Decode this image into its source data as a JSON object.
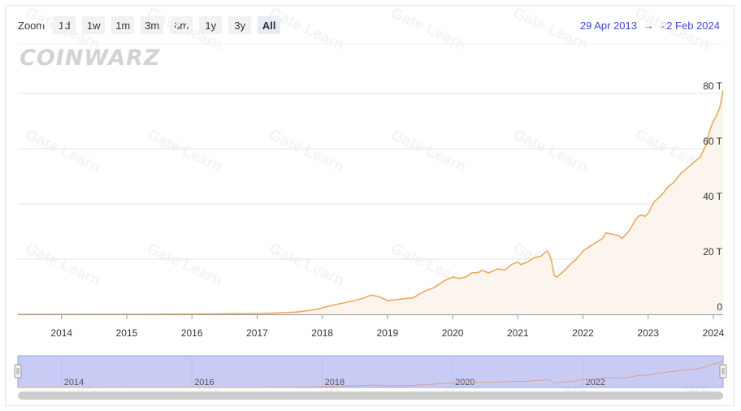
{
  "zoom": {
    "label": "Zoom",
    "buttons": [
      "1d",
      "1w",
      "1m",
      "3m",
      "6m",
      "1y",
      "3y",
      "All"
    ],
    "active": "All"
  },
  "range": {
    "from": "29 Apr 2013",
    "arrow": "→",
    "to": "22 Feb 2024"
  },
  "logo": "COINWARZ",
  "watermark": "Gate Learn",
  "colors": {
    "line": "#eba95c",
    "area": "#fbf5ee",
    "navigator_mask": "#c8ccf5",
    "navigator_line": "#d9a090",
    "grid": "#e6e6e6",
    "scrollbar": "#cccccc"
  },
  "chart_data": {
    "type": "area",
    "xlim": [
      2013.33,
      2024.15
    ],
    "ylim": [
      0,
      80
    ],
    "y_unit": "T",
    "y_ticks": [
      "0",
      "20 T",
      "40 T",
      "60 T",
      "80 T"
    ],
    "y_tick_values": [
      0,
      20,
      40,
      60,
      80
    ],
    "x_ticks": [
      "2014",
      "2015",
      "2016",
      "2017",
      "2018",
      "2019",
      "2020",
      "2021",
      "2022",
      "2023",
      "2024"
    ],
    "x_tick_values": [
      2014,
      2015,
      2016,
      2017,
      2018,
      2019,
      2020,
      2021,
      2022,
      2023,
      2024
    ],
    "navigator_ticks": [
      "2014",
      "2016",
      "2018",
      "2020",
      "2022"
    ],
    "navigator_tick_values": [
      2014,
      2016,
      2018,
      2020,
      2022
    ],
    "points": [
      [
        2013.33,
        0.0
      ],
      [
        2014.0,
        0.002
      ],
      [
        2014.5,
        0.02
      ],
      [
        2015.0,
        0.04
      ],
      [
        2015.5,
        0.05
      ],
      [
        2016.0,
        0.1
      ],
      [
        2016.5,
        0.2
      ],
      [
        2017.0,
        0.3
      ],
      [
        2017.3,
        0.5
      ],
      [
        2017.6,
        0.8
      ],
      [
        2017.8,
        1.4
      ],
      [
        2017.95,
        2.0
      ],
      [
        2018.1,
        3.0
      ],
      [
        2018.3,
        4.0
      ],
      [
        2018.5,
        5.0
      ],
      [
        2018.65,
        6.0
      ],
      [
        2018.75,
        7.0
      ],
      [
        2018.85,
        6.5
      ],
      [
        2018.95,
        5.6
      ],
      [
        2019.0,
        5.0
      ],
      [
        2019.2,
        5.5
      ],
      [
        2019.4,
        6.0
      ],
      [
        2019.5,
        7.5
      ],
      [
        2019.6,
        8.7
      ],
      [
        2019.7,
        9.5
      ],
      [
        2019.8,
        11.0
      ],
      [
        2019.9,
        12.5
      ],
      [
        2020.0,
        13.5
      ],
      [
        2020.1,
        13.0
      ],
      [
        2020.2,
        13.5
      ],
      [
        2020.3,
        15.0
      ],
      [
        2020.4,
        15.2
      ],
      [
        2020.45,
        16.0
      ],
      [
        2020.55,
        15.0
      ],
      [
        2020.7,
        16.5
      ],
      [
        2020.8,
        16.0
      ],
      [
        2020.9,
        18.0
      ],
      [
        2021.0,
        19.0
      ],
      [
        2021.05,
        18.0
      ],
      [
        2021.15,
        19.0
      ],
      [
        2021.25,
        20.5
      ],
      [
        2021.35,
        21.0
      ],
      [
        2021.45,
        23.0
      ],
      [
        2021.48,
        22.0
      ],
      [
        2021.52,
        19.0
      ],
      [
        2021.56,
        14.0
      ],
      [
        2021.6,
        13.5
      ],
      [
        2021.7,
        15.5
      ],
      [
        2021.8,
        18.0
      ],
      [
        2021.9,
        20.0
      ],
      [
        2022.0,
        23.0
      ],
      [
        2022.1,
        24.5
      ],
      [
        2022.2,
        26.0
      ],
      [
        2022.3,
        27.5
      ],
      [
        2022.35,
        29.5
      ],
      [
        2022.45,
        29.0
      ],
      [
        2022.55,
        28.5
      ],
      [
        2022.6,
        27.5
      ],
      [
        2022.7,
        30.0
      ],
      [
        2022.8,
        34.0
      ],
      [
        2022.85,
        35.5
      ],
      [
        2022.9,
        36.0
      ],
      [
        2022.95,
        35.5
      ],
      [
        2023.0,
        36.5
      ],
      [
        2023.05,
        39.0
      ],
      [
        2023.1,
        41.0
      ],
      [
        2023.2,
        43.0
      ],
      [
        2023.3,
        46.0
      ],
      [
        2023.4,
        48.0
      ],
      [
        2023.5,
        51.0
      ],
      [
        2023.6,
        53.0
      ],
      [
        2023.7,
        55.0
      ],
      [
        2023.8,
        57.0
      ],
      [
        2023.9,
        62.0
      ],
      [
        2023.95,
        67.0
      ],
      [
        2024.0,
        70.0
      ],
      [
        2024.05,
        72.0
      ],
      [
        2024.1,
        75.0
      ],
      [
        2024.15,
        81.0
      ]
    ]
  }
}
